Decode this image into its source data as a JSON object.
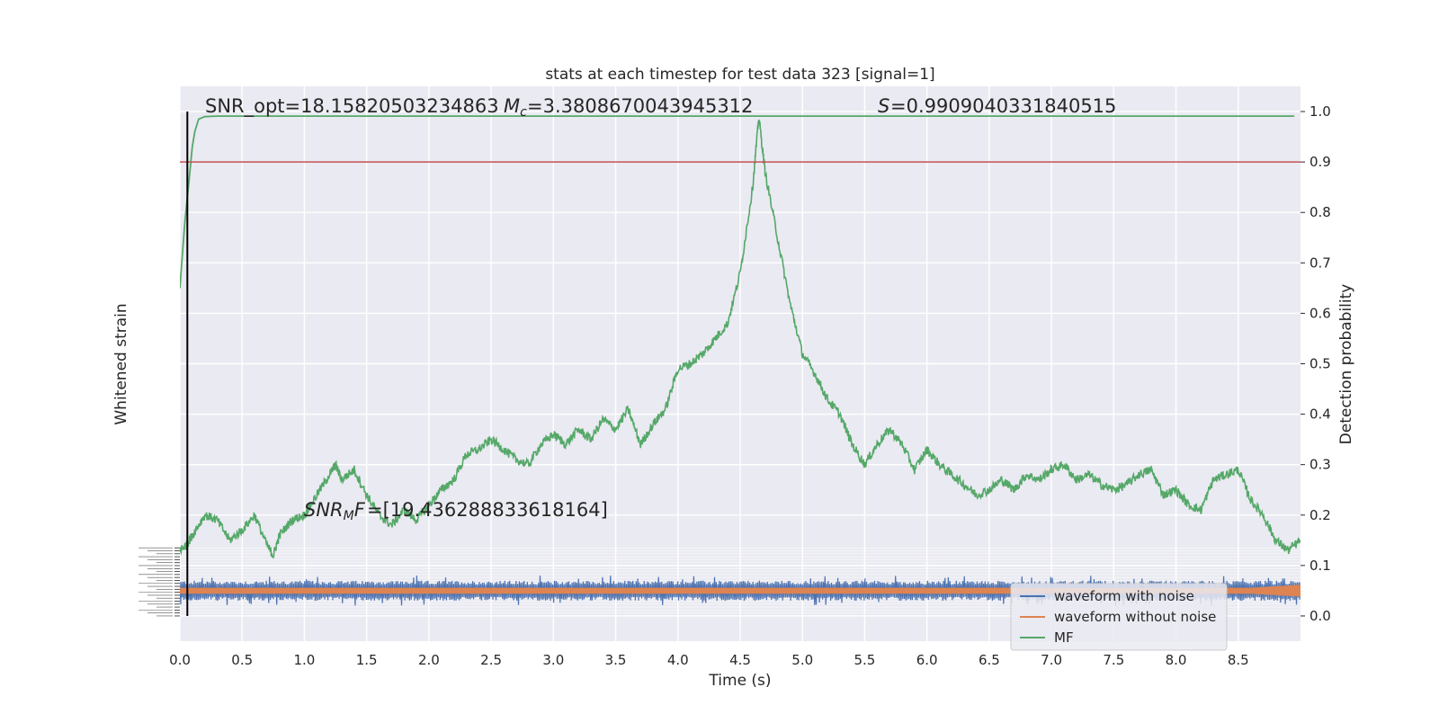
{
  "chart_data": {
    "type": "line",
    "title": "stats at each timestep for test data 323 [signal=1]",
    "xlabel": "Time (s)",
    "ylabel_left": "Whitened strain",
    "ylabel_right": "Detection probability",
    "xlim": [
      0.0,
      9.0
    ],
    "ylim_right": [
      -0.05,
      1.05
    ],
    "x_ticks": [
      "0.0",
      "0.5",
      "1.0",
      "1.5",
      "2.0",
      "2.5",
      "3.0",
      "3.5",
      "4.0",
      "4.5",
      "5.0",
      "5.5",
      "6.0",
      "6.5",
      "7.0",
      "7.5",
      "8.0",
      "8.5"
    ],
    "y_right_ticks": [
      "0.0",
      "0.1",
      "0.2",
      "0.3",
      "0.4",
      "0.5",
      "0.6",
      "0.7",
      "0.8",
      "0.9",
      "1.0"
    ],
    "grid": true,
    "legend_position": "lower-right",
    "threshold": 0.9,
    "marker_time": 0.06,
    "annotations": {
      "snr_opt": "SNR_opt=18.15820503234863",
      "mc": "=3.3808670043945312",
      "s": "=0.9909040331840515",
      "snr_mf": "=[19.436288833618164]"
    },
    "series": [
      {
        "name": "waveform with noise",
        "color": "#4c72b0",
        "style": "noise band, centered at 0.05, amplitude about ±0.02"
      },
      {
        "name": "waveform without noise",
        "color": "#dd8452",
        "style": "thin band centered at 0.05, amplitude about ±0.007"
      },
      {
        "name": "MF",
        "color": "#55a868",
        "x": [
          0.0,
          0.05,
          0.1,
          0.2,
          0.3,
          0.4,
          0.5,
          0.6,
          0.7,
          0.75,
          0.8,
          0.9,
          1.0,
          1.1,
          1.2,
          1.25,
          1.3,
          1.4,
          1.5,
          1.6,
          1.7,
          1.8,
          1.9,
          2.0,
          2.1,
          2.2,
          2.3,
          2.4,
          2.5,
          2.6,
          2.7,
          2.8,
          2.9,
          3.0,
          3.1,
          3.2,
          3.3,
          3.4,
          3.5,
          3.6,
          3.7,
          3.8,
          3.9,
          4.0,
          4.1,
          4.2,
          4.3,
          4.4,
          4.5,
          4.6,
          4.65,
          4.7,
          4.8,
          4.9,
          5.0,
          5.1,
          5.2,
          5.3,
          5.4,
          5.5,
          5.6,
          5.7,
          5.8,
          5.9,
          6.0,
          6.1,
          6.2,
          6.3,
          6.4,
          6.5,
          6.6,
          6.7,
          6.8,
          6.9,
          7.0,
          7.1,
          7.2,
          7.3,
          7.4,
          7.5,
          7.6,
          7.7,
          7.8,
          7.9,
          8.0,
          8.1,
          8.2,
          8.3,
          8.4,
          8.5,
          8.6,
          8.7,
          8.8,
          8.9,
          9.0
        ],
        "y": [
          0.13,
          0.14,
          0.16,
          0.2,
          0.19,
          0.15,
          0.17,
          0.2,
          0.14,
          0.12,
          0.16,
          0.19,
          0.2,
          0.24,
          0.28,
          0.3,
          0.27,
          0.29,
          0.24,
          0.2,
          0.18,
          0.21,
          0.19,
          0.22,
          0.25,
          0.27,
          0.32,
          0.33,
          0.35,
          0.33,
          0.31,
          0.3,
          0.34,
          0.36,
          0.34,
          0.37,
          0.35,
          0.39,
          0.37,
          0.41,
          0.34,
          0.38,
          0.41,
          0.49,
          0.5,
          0.52,
          0.55,
          0.58,
          0.68,
          0.85,
          0.99,
          0.88,
          0.75,
          0.62,
          0.52,
          0.48,
          0.43,
          0.4,
          0.34,
          0.3,
          0.34,
          0.37,
          0.34,
          0.29,
          0.33,
          0.3,
          0.28,
          0.26,
          0.24,
          0.25,
          0.27,
          0.25,
          0.28,
          0.27,
          0.29,
          0.3,
          0.27,
          0.28,
          0.26,
          0.25,
          0.26,
          0.28,
          0.29,
          0.24,
          0.25,
          0.22,
          0.21,
          0.27,
          0.28,
          0.29,
          0.23,
          0.2,
          0.15,
          0.13,
          0.15
        ]
      },
      {
        "name": "Detection probability",
        "color": "#55a868",
        "x": [
          0.0,
          0.04,
          0.08,
          0.1,
          0.12,
          0.15,
          0.2,
          0.3,
          0.5,
          1.0,
          2.0,
          4.0,
          6.0,
          8.0,
          8.95
        ],
        "y": [
          0.65,
          0.78,
          0.88,
          0.93,
          0.96,
          0.985,
          0.99,
          0.991,
          0.991,
          0.991,
          0.991,
          0.991,
          0.991,
          0.991,
          0.991
        ]
      }
    ]
  }
}
